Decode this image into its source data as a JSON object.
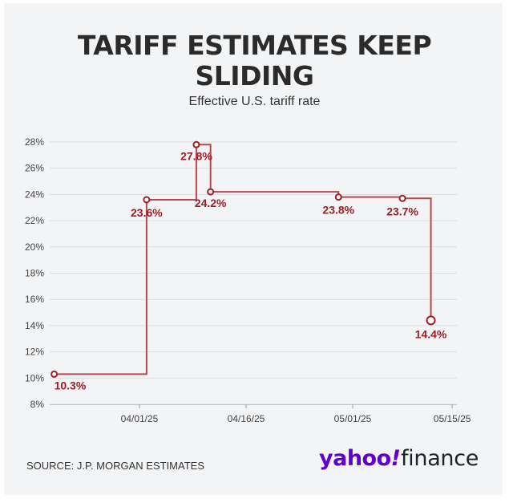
{
  "header": {
    "title_line1": "TARIFF ESTIMATES KEEP",
    "title_line2": "SLIDING",
    "subtitle": "Effective U.S. tariff rate"
  },
  "footer": {
    "source": "SOURCE: J.P. MORGAN ESTIMATES",
    "logo_yahoo": "yahoo",
    "logo_bang": "!",
    "logo_finance": "finance"
  },
  "colors": {
    "line": "#b44a4f",
    "label": "#a01c22",
    "grid": "#dcdde0",
    "axis_text": "#444444",
    "logo_purple": "#6001d2"
  },
  "chart_data": {
    "type": "line",
    "step": true,
    "title": "TARIFF ESTIMATES KEEP SLIDING",
    "subtitle": "Effective U.S. tariff rate",
    "xlabel": "",
    "ylabel": "",
    "xlim": [
      "2025-03-20",
      "2025-05-15"
    ],
    "ylim": [
      8,
      28
    ],
    "yticks": [
      8,
      10,
      12,
      14,
      16,
      18,
      20,
      22,
      24,
      26,
      28
    ],
    "ytick_labels": [
      "8%",
      "10%",
      "12%",
      "14%",
      "16%",
      "18%",
      "20%",
      "22%",
      "24%",
      "26%",
      "28%"
    ],
    "xticks": [
      "2025-04-01",
      "2025-04-16",
      "2025-05-01",
      "2025-05-15"
    ],
    "xtick_labels": [
      "04/01/25",
      "04/16/25",
      "05/01/25",
      "05/15/25"
    ],
    "grid": true,
    "points": [
      {
        "date": "2025-03-20",
        "value": 10.3,
        "label": "10.3%"
      },
      {
        "date": "2025-04-02",
        "value": 23.6,
        "label": "23.6%"
      },
      {
        "date": "2025-04-09",
        "value": 27.8,
        "label": "27.8%"
      },
      {
        "date": "2025-04-11",
        "value": 24.2,
        "label": "24.2%"
      },
      {
        "date": "2025-04-29",
        "value": 23.8,
        "label": "23.8%"
      },
      {
        "date": "2025-05-08",
        "value": 23.7,
        "label": "23.7%"
      },
      {
        "date": "2025-05-12",
        "value": 14.4,
        "label": "14.4%"
      }
    ]
  }
}
